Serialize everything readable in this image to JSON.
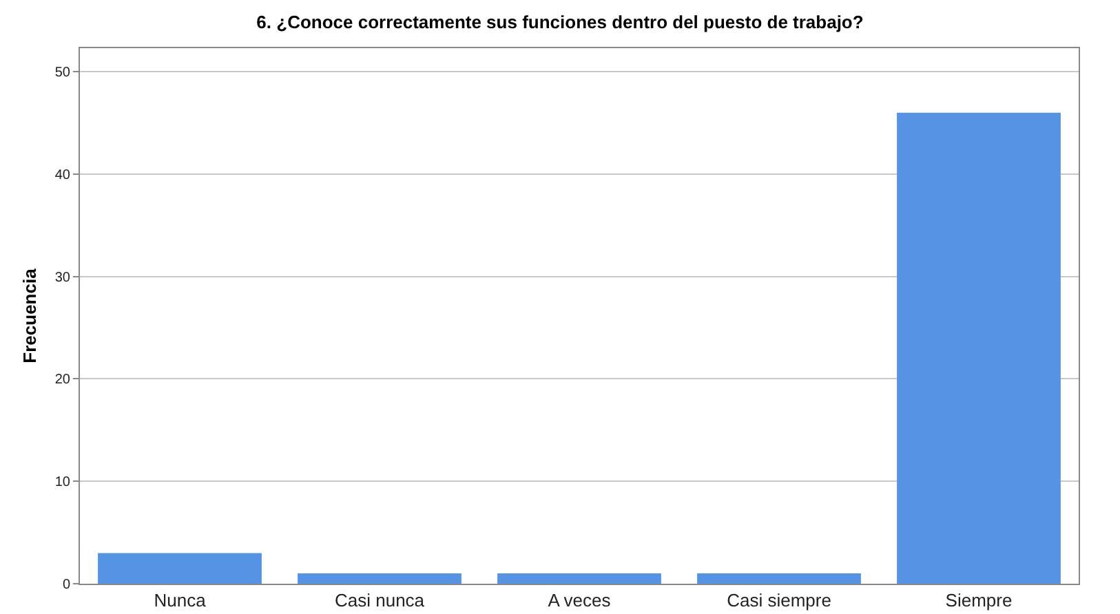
{
  "chart_data": {
    "type": "bar",
    "title": "6. ¿Conoce correctamente sus funciones dentro del puesto de trabajo?",
    "ylabel": "Frecuencia",
    "categories": [
      "Nunca",
      "Casi nunca",
      "A veces",
      "Casi siempre",
      "Siempre"
    ],
    "values": [
      3,
      1,
      1,
      1,
      46
    ],
    "color": "#5694e3",
    "ylim": [
      0,
      52.3
    ],
    "yticks": [
      0,
      10,
      20,
      30,
      40,
      50
    ],
    "grid": "y"
  }
}
